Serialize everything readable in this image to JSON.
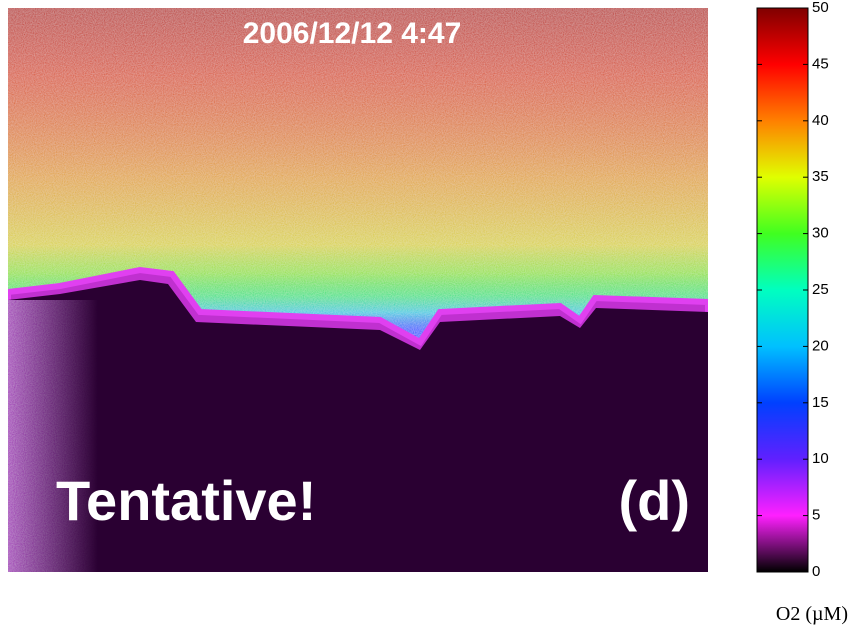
{
  "image": {
    "timestamp": "2006/12/12 4:47",
    "label": "Tentative!",
    "panel": "(d)"
  },
  "colorbar": {
    "lim": [
      0,
      50
    ],
    "ticks": [
      0,
      5,
      10,
      15,
      20,
      25,
      30,
      35,
      40,
      45,
      50
    ],
    "label": "O2 (µM)"
  }
}
